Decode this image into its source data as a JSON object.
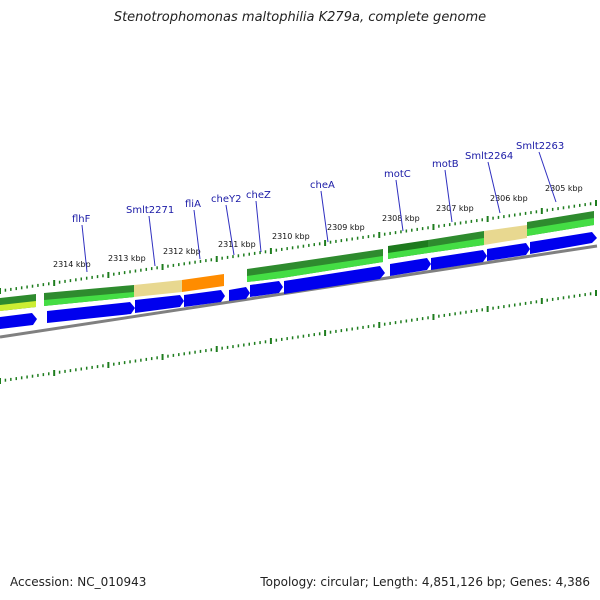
{
  "title": "Stenotrophomonas maltophilia K279a, complete genome",
  "accession": "Accession: NC_010943",
  "topology": "Topology: circular; Length: 4,851,126 bp; Genes: 4,386",
  "kbp_labels": [
    "2314 kbp",
    "2313 kbp",
    "2312 kbp",
    "2311 kbp",
    "2310 kbp",
    "2309 kbp",
    "2308 kbp",
    "2307 kbp",
    "2306 kbp",
    "2305 kbp"
  ],
  "gene_labels": [
    "flhF",
    "Smlt2271",
    "fliA",
    "cheY2",
    "cheZ",
    "cheA",
    "motC",
    "motB",
    "Smlt2264",
    "Smlt2263"
  ],
  "colors": {
    "cds": "#0000ee",
    "gene_green": "#2e8b2e",
    "gene_light_green": "#44dd44",
    "gene_tan": "#e8d890",
    "gene_orange": "#ff8c00",
    "backbone": "#808080",
    "tick": "#1e7d1e",
    "label_line": "#3030c0"
  }
}
